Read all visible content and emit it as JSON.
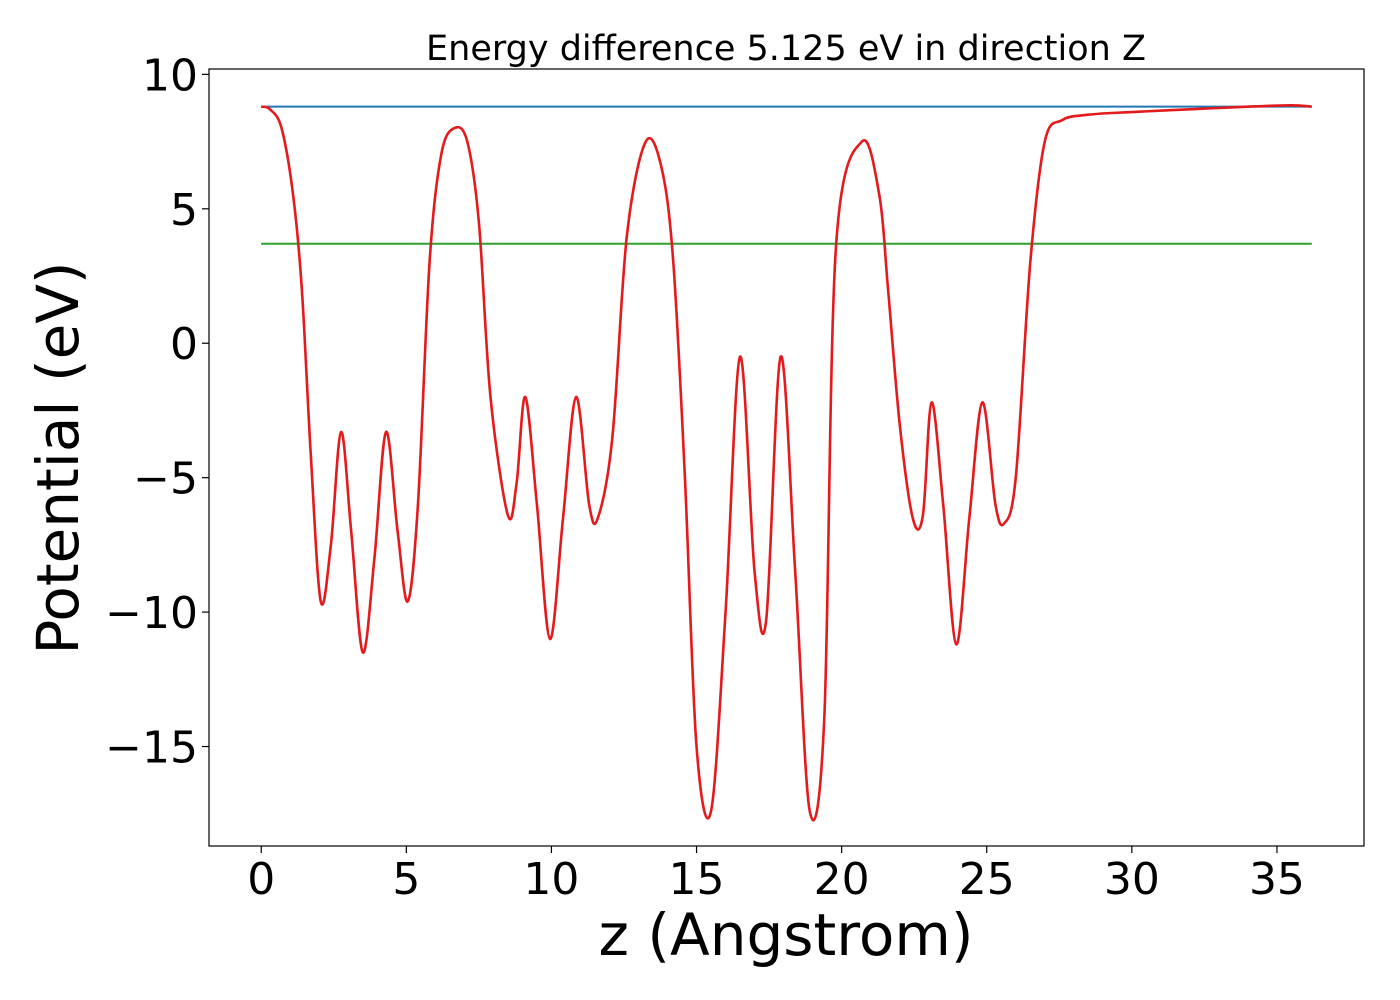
{
  "chart_data": {
    "type": "line",
    "title": "Energy difference 5.125 eV in direction Z",
    "xlabel": "z (Angstrom)",
    "ylabel": "Potential (eV)",
    "xlim": [
      -1.8,
      38.0
    ],
    "ylim": [
      -18.7,
      10.2
    ],
    "xticks": [
      0,
      5,
      10,
      15,
      20,
      25,
      30,
      35
    ],
    "xtick_labels": [
      "0",
      "5",
      "10",
      "15",
      "20",
      "25",
      "30",
      "35"
    ],
    "yticks": [
      10,
      5,
      0,
      -5,
      -10,
      -15
    ],
    "ytick_labels": [
      "10",
      "5",
      "0",
      "−5",
      "−10",
      "−15"
    ],
    "grid": false,
    "legend": "none",
    "series": [
      {
        "color": "#1f77b4",
        "x": [
          0,
          36.2
        ],
        "y": [
          8.8,
          8.8
        ]
      },
      {
        "color": "#2ca02c",
        "x": [
          0,
          36.2
        ],
        "y": [
          3.7,
          3.7
        ]
      },
      {
        "color": "#e41a1c",
        "x": [
          0,
          0.3,
          0.7,
          1.1,
          1.4,
          1.7,
          2.05,
          2.4,
          2.75,
          3.1,
          3.5,
          3.9,
          4.3,
          4.7,
          5.05,
          5.4,
          5.8,
          6.2,
          6.65,
          7.1,
          7.5,
          7.9,
          8.5,
          8.8,
          9.1,
          9.5,
          9.95,
          10.4,
          10.85,
          11.3,
          11.6,
          12.1,
          12.6,
          13.25,
          13.8,
          14.2,
          14.6,
          15.0,
          15.5,
          16.0,
          16.5,
          17.0,
          17.4,
          17.9,
          18.4,
          18.9,
          19.4,
          19.8,
          20.7,
          21.3,
          21.6,
          22.0,
          22.45,
          22.8,
          23.1,
          23.5,
          23.95,
          24.4,
          24.85,
          25.3,
          25.6,
          26.0,
          26.5,
          27.0,
          27.6,
          28.5,
          30,
          32,
          34,
          35.5,
          36.2
        ],
        "y": [
          8.8,
          8.7,
          8.0,
          5.5,
          2.0,
          -4.0,
          -9.6,
          -7.5,
          -3.3,
          -7.0,
          -11.5,
          -8.0,
          -3.3,
          -7.0,
          -9.6,
          -6.0,
          3.0,
          7.0,
          8.0,
          7.5,
          4.5,
          -2.0,
          -6.4,
          -5.2,
          -2.0,
          -6.0,
          -11.0,
          -6.5,
          -2.0,
          -6.0,
          -6.5,
          -3.5,
          4.0,
          7.5,
          6.5,
          3.0,
          -5.0,
          -15.0,
          -17.4,
          -10.0,
          -0.5,
          -8.5,
          -10.3,
          -0.5,
          -8.5,
          -17.4,
          -14.0,
          3.5,
          7.5,
          5.5,
          2.0,
          -3.0,
          -6.5,
          -6.4,
          -2.2,
          -6.0,
          -11.2,
          -6.5,
          -2.2,
          -6.0,
          -6.7,
          -5.0,
          3.0,
          7.5,
          8.3,
          8.5,
          8.6,
          8.7,
          8.8,
          8.85,
          8.8
        ]
      }
    ]
  }
}
